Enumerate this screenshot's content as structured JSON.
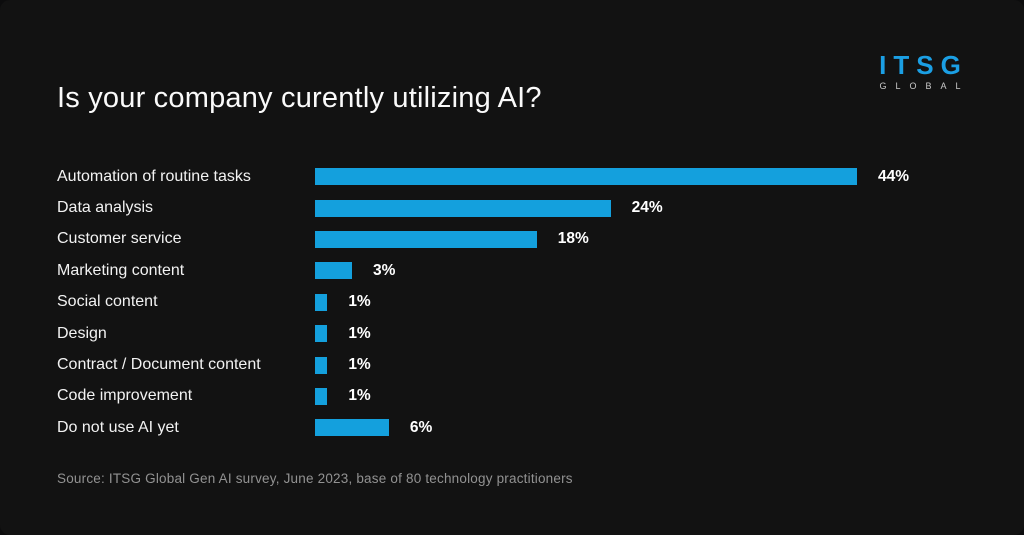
{
  "page": {
    "background_color": "#121212"
  },
  "header": {
    "title": "Is your company curently utilizing AI?",
    "logo": {
      "main": "ITSG",
      "sub": "GLOBAL",
      "main_color": "#1b9fe4",
      "sub_color": "#c9c9c9"
    }
  },
  "chart_data": {
    "type": "bar",
    "orientation": "horizontal",
    "title": "Is your company curently utilizing AI?",
    "categories": [
      "Automation of routine tasks",
      "Data analysis",
      "Customer service",
      "Marketing content",
      "Social content",
      "Design",
      "Contract / Document content",
      "Code improvement",
      "Do not use AI yet"
    ],
    "values": [
      44,
      24,
      18,
      3,
      1,
      1,
      1,
      1,
      6
    ],
    "value_labels": [
      "44%",
      "24%",
      "18%",
      "3%",
      "1%",
      "1%",
      "1%",
      "1%",
      "6%"
    ],
    "xlabel": "",
    "ylabel": "",
    "xlim": [
      0,
      44
    ],
    "bar_color": "#14a0dd",
    "grid": false,
    "legend": null,
    "value_label_position": "outside-end"
  },
  "footer": {
    "source": "Source: ITSG Global Gen AI survey, June 2023, base of 80 technology practitioners"
  }
}
